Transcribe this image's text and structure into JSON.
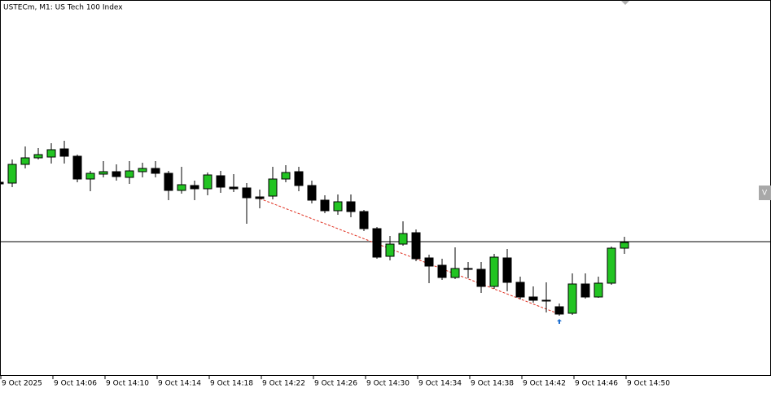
{
  "chart_data": {
    "type": "candlestick",
    "title": "USTECm, M1:  US Tech 100 Index",
    "x_labels": [
      "9 Oct 2025",
      "9 Oct 14:06",
      "9 Oct 14:10",
      "9 Oct 14:14",
      "9 Oct 14:18",
      "9 Oct 14:22",
      "9 Oct 14:26",
      "9 Oct 14:30",
      "9 Oct 14:34",
      "9 Oct 14:38",
      "9 Oct 14:42",
      "9 Oct 14:46",
      "9 Oct 14:50"
    ],
    "open": [
      237,
      236,
      259,
      267,
      268,
      278,
      269,
      241,
      247,
      250,
      243,
      250,
      254,
      248,
      227,
      233,
      229,
      245,
      231,
      230,
      219,
      220,
      241,
      250,
      233,
      215,
      202,
      213,
      201,
      180,
      146,
      161,
      175,
      144,
      135,
      120,
      131,
      130,
      109,
      144,
      114,
      96,
      92,
      84,
      76,
      112,
      96,
      113,
      156
    ],
    "high": [
      239,
      265,
      281,
      279,
      285,
      288,
      271,
      251,
      263,
      259,
      263,
      261,
      263,
      251,
      256,
      239,
      249,
      251,
      247,
      236,
      228,
      256,
      258,
      256,
      239,
      221,
      222,
      222,
      203,
      182,
      171,
      189,
      179,
      148,
      143,
      157,
      139,
      139,
      149,
      155,
      121,
      109,
      114,
      88,
      125,
      125,
      121,
      158,
      170
    ],
    "low": [
      233,
      231,
      254,
      265,
      260,
      260,
      237,
      226,
      243,
      239,
      235,
      243,
      243,
      215,
      223,
      215,
      221,
      224,
      225,
      186,
      205,
      216,
      237,
      226,
      211,
      199,
      197,
      194,
      177,
      143,
      141,
      159,
      140,
      113,
      117,
      118,
      119,
      101,
      106,
      103,
      93,
      89,
      77,
      73,
      74,
      94,
      95,
      111,
      149
    ],
    "close": [
      235,
      259,
      267,
      271,
      277,
      269,
      241,
      248,
      250,
      244,
      251,
      254,
      248,
      227,
      234,
      229,
      246,
      231,
      229,
      218,
      217,
      241,
      249,
      233,
      215,
      202,
      213,
      201,
      180,
      145,
      161,
      174,
      143,
      134,
      120,
      131,
      130,
      109,
      145,
      114,
      96,
      92,
      91,
      75,
      112,
      96,
      113,
      156,
      163
    ],
    "up_color": "#22c422",
    "down_color": "#000000",
    "ylim": [
      0,
      461
    ],
    "price_line": 164,
    "trend_line": [
      217,
      75
    ],
    "right_label": "V"
  }
}
